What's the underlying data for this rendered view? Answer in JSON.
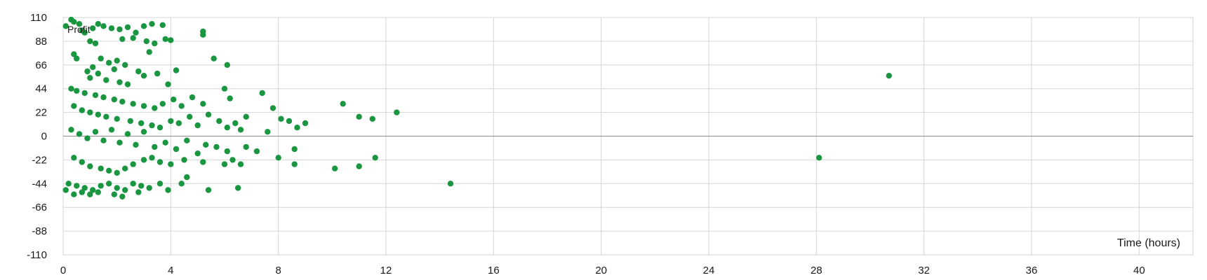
{
  "chart_data": {
    "type": "scatter",
    "title": "",
    "xlabel": "Time (hours)",
    "ylabel": "",
    "xlim": [
      0,
      42
    ],
    "ylim": [
      -110,
      110
    ],
    "xticks": [
      0,
      4,
      8,
      12,
      16,
      20,
      24,
      28,
      32,
      36,
      40
    ],
    "yticks": [
      110,
      88,
      66,
      44,
      22,
      0,
      -22,
      -44,
      -66,
      -88,
      -110
    ],
    "grid": true,
    "series_label": "Profit",
    "marker_color": "#1a9641",
    "series": [
      {
        "points": [
          [
            0.1,
            102
          ],
          [
            0.3,
            108
          ],
          [
            0.4,
            106
          ],
          [
            0.6,
            104
          ],
          [
            0.7,
            98
          ],
          [
            0.8,
            96
          ],
          [
            1.1,
            100
          ],
          [
            1.3,
            104
          ],
          [
            1.5,
            102
          ],
          [
            1.8,
            100
          ],
          [
            2.1,
            99
          ],
          [
            2.4,
            101
          ],
          [
            2.7,
            96
          ],
          [
            3.0,
            102
          ],
          [
            3.3,
            104
          ],
          [
            3.7,
            103
          ],
          [
            1.0,
            88
          ],
          [
            1.2,
            86
          ],
          [
            2.2,
            90
          ],
          [
            2.6,
            91
          ],
          [
            3.1,
            88
          ],
          [
            3.4,
            86
          ],
          [
            3.8,
            90
          ],
          [
            4.0,
            89
          ],
          [
            5.2,
            97
          ],
          [
            5.2,
            94
          ],
          [
            3.2,
            78
          ],
          [
            0.4,
            76
          ],
          [
            0.5,
            72
          ],
          [
            1.4,
            72
          ],
          [
            1.7,
            68
          ],
          [
            2.0,
            70
          ],
          [
            5.6,
            72
          ],
          [
            6.1,
            66
          ],
          [
            1.1,
            64
          ],
          [
            1.9,
            62
          ],
          [
            2.3,
            66
          ],
          [
            2.8,
            60
          ],
          [
            4.2,
            61
          ],
          [
            0.9,
            60
          ],
          [
            1.3,
            58
          ],
          [
            3.0,
            56
          ],
          [
            3.5,
            58
          ],
          [
            1.0,
            54
          ],
          [
            1.6,
            52
          ],
          [
            2.1,
            50
          ],
          [
            2.4,
            48
          ],
          [
            3.9,
            48
          ],
          [
            6.0,
            44
          ],
          [
            6.2,
            35
          ],
          [
            7.4,
            40
          ],
          [
            7.8,
            26
          ],
          [
            0.3,
            44
          ],
          [
            0.5,
            42
          ],
          [
            0.8,
            40
          ],
          [
            1.2,
            38
          ],
          [
            1.5,
            36
          ],
          [
            1.9,
            34
          ],
          [
            2.2,
            32
          ],
          [
            2.6,
            30
          ],
          [
            3.0,
            28
          ],
          [
            3.4,
            26
          ],
          [
            3.7,
            30
          ],
          [
            4.1,
            34
          ],
          [
            4.4,
            28
          ],
          [
            4.8,
            36
          ],
          [
            5.2,
            30
          ],
          [
            0.4,
            28
          ],
          [
            0.7,
            24
          ],
          [
            1.0,
            22
          ],
          [
            1.3,
            20
          ],
          [
            1.6,
            18
          ],
          [
            2.0,
            16
          ],
          [
            2.5,
            14
          ],
          [
            2.9,
            12
          ],
          [
            3.3,
            10
          ],
          [
            3.6,
            8
          ],
          [
            4.0,
            14
          ],
          [
            4.3,
            12
          ],
          [
            4.7,
            18
          ],
          [
            5.0,
            10
          ],
          [
            5.4,
            20
          ],
          [
            5.8,
            14
          ],
          [
            6.1,
            8
          ],
          [
            6.4,
            12
          ],
          [
            6.8,
            18
          ],
          [
            6.6,
            6
          ],
          [
            7.6,
            4
          ],
          [
            8.1,
            16
          ],
          [
            8.4,
            14
          ],
          [
            8.7,
            8
          ],
          [
            9.0,
            12
          ],
          [
            10.4,
            30
          ],
          [
            11.0,
            18
          ],
          [
            11.5,
            16
          ],
          [
            12.4,
            22
          ],
          [
            0.3,
            6
          ],
          [
            0.6,
            2
          ],
          [
            0.9,
            -2
          ],
          [
            1.2,
            4
          ],
          [
            1.5,
            -4
          ],
          [
            1.8,
            6
          ],
          [
            2.1,
            -6
          ],
          [
            2.4,
            2
          ],
          [
            2.7,
            -8
          ],
          [
            3.0,
            4
          ],
          [
            3.4,
            -10
          ],
          [
            3.8,
            -6
          ],
          [
            4.2,
            -12
          ],
          [
            4.6,
            -4
          ],
          [
            5.0,
            -16
          ],
          [
            5.3,
            -8
          ],
          [
            5.7,
            -10
          ],
          [
            6.1,
            -14
          ],
          [
            6.3,
            -22
          ],
          [
            6.8,
            -10
          ],
          [
            7.2,
            -14
          ],
          [
            8.0,
            -20
          ],
          [
            8.6,
            -26
          ],
          [
            8.6,
            -12
          ],
          [
            10.1,
            -30
          ],
          [
            11.0,
            -28
          ],
          [
            11.6,
            -20
          ],
          [
            0.4,
            -20
          ],
          [
            0.7,
            -24
          ],
          [
            1.0,
            -28
          ],
          [
            1.4,
            -30
          ],
          [
            1.7,
            -32
          ],
          [
            2.0,
            -34
          ],
          [
            2.3,
            -30
          ],
          [
            2.6,
            -26
          ],
          [
            3.0,
            -22
          ],
          [
            3.3,
            -20
          ],
          [
            3.6,
            -24
          ],
          [
            4.0,
            -26
          ],
          [
            4.5,
            -22
          ],
          [
            5.2,
            -24
          ],
          [
            6.0,
            -26
          ],
          [
            6.6,
            -26
          ],
          [
            0.2,
            -44
          ],
          [
            0.5,
            -46
          ],
          [
            0.8,
            -48
          ],
          [
            1.1,
            -50
          ],
          [
            1.4,
            -46
          ],
          [
            1.7,
            -44
          ],
          [
            2.0,
            -48
          ],
          [
            2.3,
            -50
          ],
          [
            2.6,
            -44
          ],
          [
            2.9,
            -46
          ],
          [
            3.2,
            -48
          ],
          [
            3.6,
            -44
          ],
          [
            3.9,
            -50
          ],
          [
            4.4,
            -44
          ],
          [
            4.6,
            -38
          ],
          [
            5.4,
            -50
          ],
          [
            6.5,
            -48
          ],
          [
            0.1,
            -50
          ],
          [
            0.4,
            -54
          ],
          [
            0.7,
            -52
          ],
          [
            1.0,
            -54
          ],
          [
            1.3,
            -52
          ],
          [
            1.9,
            -54
          ],
          [
            2.2,
            -56
          ],
          [
            2.8,
            -52
          ],
          [
            14.4,
            -44
          ],
          [
            28.1,
            -20
          ],
          [
            30.7,
            56
          ]
        ]
      }
    ]
  }
}
